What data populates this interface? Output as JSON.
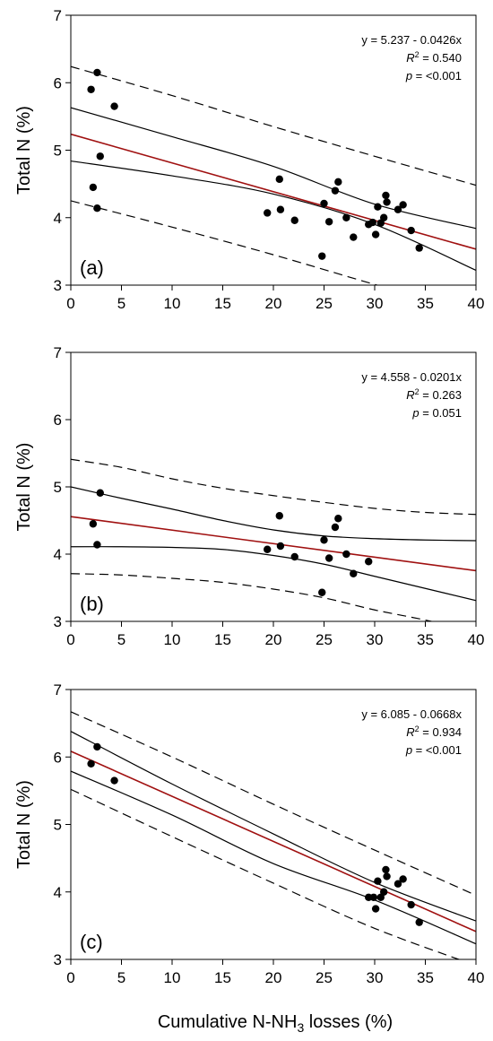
{
  "xlabel": "Cumulative N-NH3 losses (%)",
  "xlabel_parts": {
    "before": "Cumulative N-NH",
    "sub": "3",
    "after": " losses (%)"
  },
  "colors": {
    "fit": "#a01010",
    "band": "#000000",
    "point": "#000000",
    "axis": "#000000"
  },
  "chart_data": [
    {
      "type": "scatter",
      "panel": "(a)",
      "ylabel": "Total N (%)",
      "xlim": [
        0,
        40
      ],
      "ylim": [
        3,
        7
      ],
      "xticks": [
        "0",
        "5",
        "10",
        "15",
        "20",
        "25",
        "30",
        "35",
        "40"
      ],
      "yticks": [
        "3",
        "4",
        "5",
        "6",
        "7"
      ],
      "equation": "y = 5.237 - 0.0426x",
      "r2_label": "R",
      "r2_value": "= 0.540",
      "p_label": "p",
      "p_value": "= <0.001",
      "fit": {
        "intercept": 5.237,
        "slope": -0.0426
      },
      "confidence_upper": [
        [
          0,
          5.63
        ],
        [
          10,
          5.2
        ],
        [
          20,
          4.76
        ],
        [
          30,
          4.2
        ],
        [
          40,
          3.84
        ]
      ],
      "confidence_lower": [
        [
          0,
          4.84
        ],
        [
          10,
          4.62
        ],
        [
          20,
          4.35
        ],
        [
          30,
          3.9
        ],
        [
          40,
          3.22
        ]
      ],
      "prediction_upper": [
        [
          0,
          6.24
        ],
        [
          10,
          5.81
        ],
        [
          20,
          5.35
        ],
        [
          30,
          4.91
        ],
        [
          40,
          4.48
        ]
      ],
      "prediction_lower": [
        [
          0,
          4.25
        ],
        [
          10,
          3.86
        ],
        [
          20,
          3.45
        ],
        [
          30,
          3.01
        ],
        [
          40,
          2.59
        ]
      ],
      "points": [
        [
          2.0,
          5.9
        ],
        [
          2.6,
          6.15
        ],
        [
          4.3,
          5.65
        ],
        [
          2.9,
          4.91
        ],
        [
          2.2,
          4.45
        ],
        [
          2.6,
          4.14
        ],
        [
          19.4,
          4.07
        ],
        [
          20.6,
          4.57
        ],
        [
          20.7,
          4.12
        ],
        [
          22.1,
          3.96
        ],
        [
          24.8,
          3.43
        ],
        [
          25.0,
          4.21
        ],
        [
          25.5,
          3.94
        ],
        [
          26.1,
          4.4
        ],
        [
          26.4,
          4.53
        ],
        [
          27.2,
          4.0
        ],
        [
          27.9,
          3.71
        ],
        [
          29.4,
          3.9
        ],
        [
          29.8,
          3.93
        ],
        [
          30.1,
          3.75
        ],
        [
          30.3,
          4.16
        ],
        [
          30.6,
          3.92
        ],
        [
          30.9,
          4.0
        ],
        [
          31.1,
          4.33
        ],
        [
          31.2,
          4.23
        ],
        [
          32.3,
          4.12
        ],
        [
          32.8,
          4.19
        ],
        [
          33.6,
          3.81
        ],
        [
          34.4,
          3.55
        ]
      ]
    },
    {
      "type": "scatter",
      "panel": "(b)",
      "ylabel": "Total N (%)",
      "xlim": [
        0,
        40
      ],
      "ylim": [
        3,
        7
      ],
      "xticks": [
        "0",
        "5",
        "10",
        "15",
        "20",
        "25",
        "30",
        "35",
        "40"
      ],
      "yticks": [
        "3",
        "4",
        "5",
        "6",
        "7"
      ],
      "equation": "y = 4.558 - 0.0201x",
      "r2_label": "R",
      "r2_value": "= 0.263",
      "p_label": "p",
      "p_value": "= 0.051",
      "fit": {
        "intercept": 4.558,
        "slope": -0.0201
      },
      "confidence_upper": [
        [
          0,
          5.0
        ],
        [
          5,
          4.83
        ],
        [
          10,
          4.67
        ],
        [
          15,
          4.5
        ],
        [
          20,
          4.36
        ],
        [
          25,
          4.27
        ],
        [
          30,
          4.23
        ],
        [
          35,
          4.21
        ],
        [
          40,
          4.2
        ]
      ],
      "confidence_lower": [
        [
          0,
          4.11
        ],
        [
          5,
          4.11
        ],
        [
          10,
          4.1
        ],
        [
          15,
          4.07
        ],
        [
          20,
          3.98
        ],
        [
          25,
          3.85
        ],
        [
          30,
          3.67
        ],
        [
          35,
          3.49
        ],
        [
          40,
          3.31
        ]
      ],
      "prediction_upper": [
        [
          0,
          5.41
        ],
        [
          5,
          5.29
        ],
        [
          10,
          5.12
        ],
        [
          15,
          4.98
        ],
        [
          20,
          4.87
        ],
        [
          25,
          4.77
        ],
        [
          30,
          4.68
        ],
        [
          35,
          4.62
        ],
        [
          40,
          4.59
        ]
      ],
      "prediction_lower": [
        [
          0,
          3.71
        ],
        [
          5,
          3.69
        ],
        [
          10,
          3.64
        ],
        [
          15,
          3.58
        ],
        [
          20,
          3.48
        ],
        [
          25,
          3.35
        ],
        [
          30,
          3.17
        ],
        [
          35,
          3.02
        ],
        [
          40,
          2.85
        ]
      ],
      "points": [
        [
          2.2,
          4.45
        ],
        [
          2.6,
          4.14
        ],
        [
          2.9,
          4.91
        ],
        [
          19.4,
          4.07
        ],
        [
          20.6,
          4.57
        ],
        [
          20.7,
          4.12
        ],
        [
          22.1,
          3.96
        ],
        [
          24.8,
          3.43
        ],
        [
          25.0,
          4.21
        ],
        [
          25.5,
          3.94
        ],
        [
          26.1,
          4.4
        ],
        [
          26.4,
          4.53
        ],
        [
          27.2,
          4.0
        ],
        [
          27.9,
          3.71
        ],
        [
          29.4,
          3.89
        ]
      ]
    },
    {
      "type": "scatter",
      "panel": "(c)",
      "ylabel": "Total N (%)",
      "xlim": [
        0,
        40
      ],
      "ylim": [
        3,
        7
      ],
      "xticks": [
        "0",
        "5",
        "10",
        "15",
        "20",
        "25",
        "30",
        "35",
        "40"
      ],
      "yticks": [
        "3",
        "4",
        "5",
        "6",
        "7"
      ],
      "equation": "y = 6.085 - 0.0668x",
      "r2_label": "R",
      "r2_value": "= 0.934",
      "p_label": "p",
      "p_value": "= <0.001",
      "fit": {
        "intercept": 6.085,
        "slope": -0.0668
      },
      "confidence_upper": [
        [
          0,
          6.38
        ],
        [
          10,
          5.6
        ],
        [
          20,
          4.86
        ],
        [
          30,
          4.14
        ],
        [
          40,
          3.57
        ]
      ],
      "confidence_lower": [
        [
          0,
          5.79
        ],
        [
          10,
          5.14
        ],
        [
          20,
          4.42
        ],
        [
          30,
          3.88
        ],
        [
          40,
          3.23
        ]
      ],
      "prediction_upper": [
        [
          0,
          6.67
        ],
        [
          10,
          6.0
        ],
        [
          20,
          5.3
        ],
        [
          30,
          4.62
        ],
        [
          40,
          3.95
        ]
      ],
      "prediction_lower": [
        [
          0,
          5.52
        ],
        [
          10,
          4.82
        ],
        [
          20,
          4.13
        ],
        [
          30,
          3.46
        ],
        [
          40,
          2.91
        ]
      ],
      "points": [
        [
          2.0,
          5.9
        ],
        [
          2.6,
          6.15
        ],
        [
          4.3,
          5.65
        ],
        [
          29.4,
          3.92
        ],
        [
          29.9,
          3.92
        ],
        [
          30.1,
          3.75
        ],
        [
          30.3,
          4.16
        ],
        [
          30.6,
          3.92
        ],
        [
          30.9,
          4.0
        ],
        [
          31.1,
          4.33
        ],
        [
          31.2,
          4.23
        ],
        [
          32.3,
          4.12
        ],
        [
          32.8,
          4.19
        ],
        [
          33.6,
          3.81
        ],
        [
          34.4,
          3.55
        ]
      ]
    }
  ]
}
